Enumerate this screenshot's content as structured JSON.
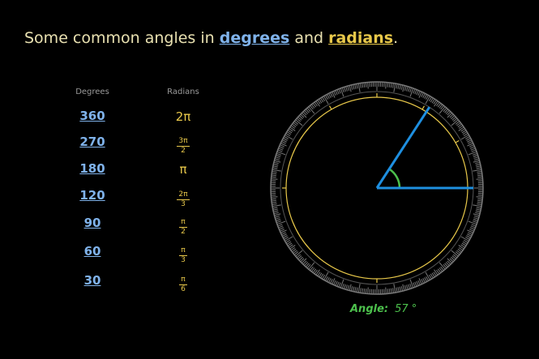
{
  "title": {
    "prefix": "Some common angles in ",
    "degrees_link": "degrees",
    "middle": " and ",
    "radians_link": "radians",
    "suffix": "."
  },
  "table": {
    "degrees_header": "Degrees",
    "radians_header": "Radians",
    "rows": [
      {
        "degrees": "360",
        "radians_num": "2π",
        "radians_den": ""
      },
      {
        "degrees": "270",
        "radians_num": "3π",
        "radians_den": "2"
      },
      {
        "degrees": "180",
        "radians_num": "π",
        "radians_den": ""
      },
      {
        "degrees": "120",
        "radians_num": "2π",
        "radians_den": "3"
      },
      {
        "degrees": "90",
        "radians_num": "π",
        "radians_den": "2"
      },
      {
        "degrees": "60",
        "radians_num": "π",
        "radians_den": "3"
      },
      {
        "degrees": "30",
        "radians_num": "π",
        "radians_den": "6"
      }
    ]
  },
  "protractor": {
    "angle_deg": 57,
    "angle_label": "Angle:",
    "angle_value": "57 °",
    "colors": {
      "ring": "#7a7a7a",
      "inner_circle": "#e8c84a",
      "arms": "#1e8fe0",
      "angle_arc": "#4cc04c"
    }
  }
}
